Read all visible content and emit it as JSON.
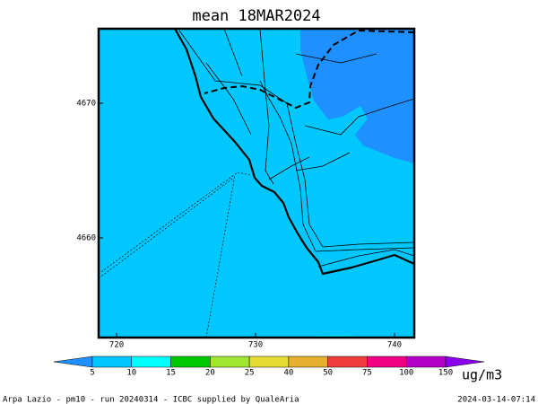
{
  "chart_data": {
    "type": "map",
    "title": "mean 18MAR2024",
    "xlim": [
      718.71,
      741.42
    ],
    "xticks": [
      720,
      730,
      740
    ],
    "ylim": [
      4652.6,
      4675.53
    ],
    "yticks": [
      4660,
      4670
    ],
    "field_colors": {
      "background": "#00c8ff",
      "region": "#1e90ff"
    },
    "colorbar": {
      "levels": [
        5,
        10,
        15,
        20,
        25,
        40,
        50,
        75,
        100,
        150
      ],
      "colors": [
        "#1e90ff",
        "#00c8ff",
        "#00ffff",
        "#00c800",
        "#a0e632",
        "#e6dc32",
        "#e6af2d",
        "#f03c3c",
        "#f00082",
        "#b400c8",
        "#8c00f0"
      ],
      "units": "ug/m3"
    },
    "footer_left": "Arpa Lazio - pm10 - run 20240314 - ICBC supplied by QualeAria",
    "footer_right": "2024-03-14-07:14"
  }
}
